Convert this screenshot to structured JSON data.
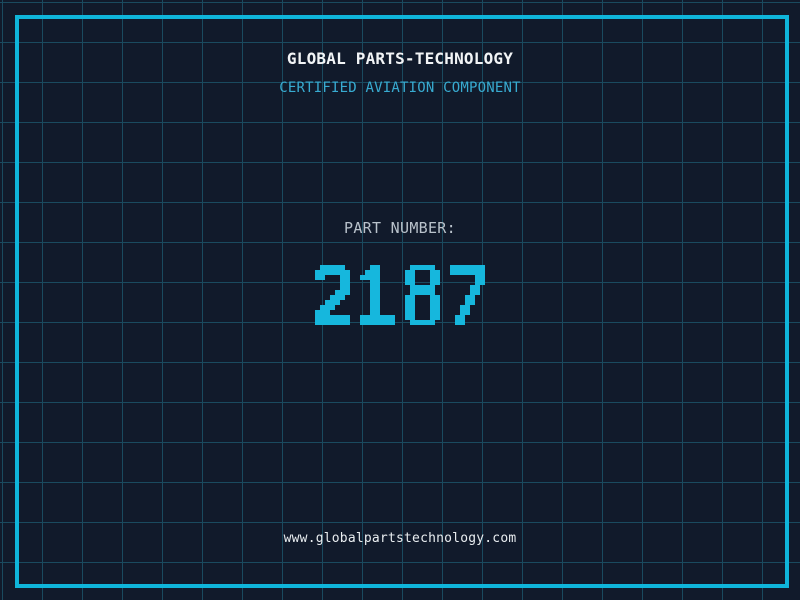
{
  "header": {
    "title": "GLOBAL PARTS-TECHNOLOGY",
    "subtitle": "CERTIFIED AVIATION COMPONENT"
  },
  "part": {
    "label": "PART NUMBER:",
    "number": "2187"
  },
  "footer": {
    "website": "www.globalpartstechnology.com"
  },
  "colors": {
    "background": "#111a2b",
    "grid_line": "#1a4a5f",
    "frame": "#0fb5da",
    "title_text": "#f2f4f6",
    "subtitle_text": "#38abd1",
    "label_text": "#b9c2cb",
    "number_text": "#16b7dd",
    "footer_text": "#e9edf0"
  }
}
